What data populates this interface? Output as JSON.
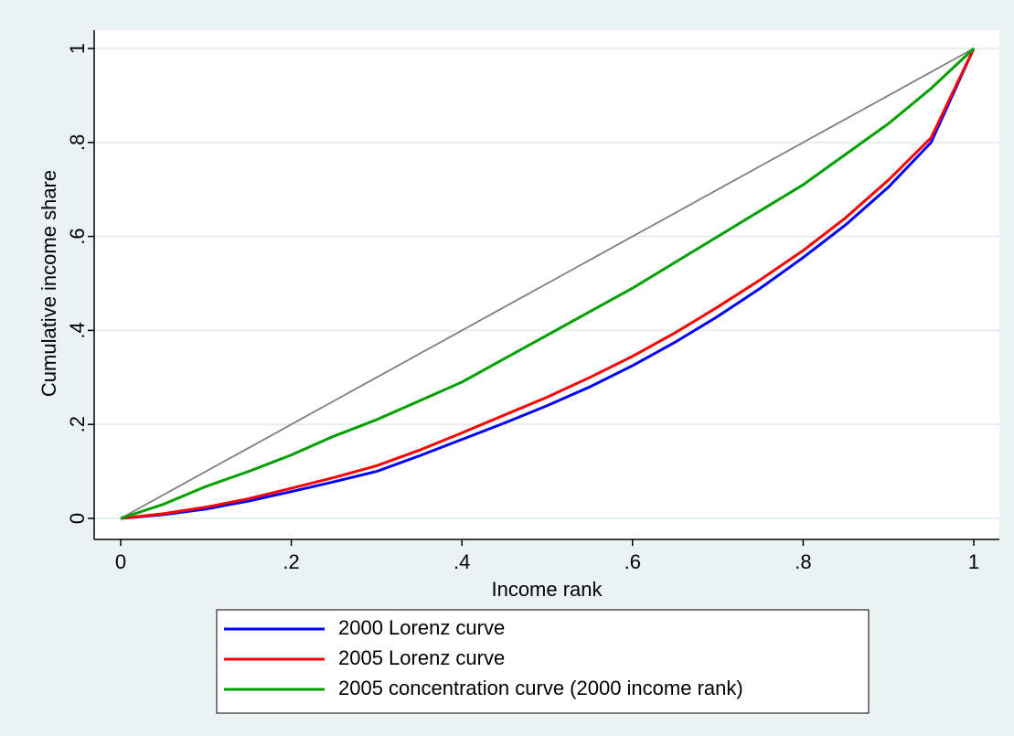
{
  "chart_data": {
    "type": "line",
    "x_label": "Income rank",
    "y_label": "Cumulative income share",
    "x": [
      0,
      0.05,
      0.1,
      0.15,
      0.2,
      0.25,
      0.3,
      0.35,
      0.4,
      0.45,
      0.5,
      0.55,
      0.6,
      0.65,
      0.7,
      0.75,
      0.8,
      0.85,
      0.9,
      0.95,
      1
    ],
    "series": [
      {
        "color": "#808080",
        "values": [
          0,
          0.05,
          0.1,
          0.15,
          0.2,
          0.25,
          0.3,
          0.35,
          0.4,
          0.45,
          0.5,
          0.55,
          0.6,
          0.65,
          0.7,
          0.75,
          0.8,
          0.85,
          0.9,
          0.95,
          1
        ]
      },
      {
        "name": "2000 Lorenz curve",
        "color": "#0000ff",
        "values": [
          0,
          0.008,
          0.02,
          0.037,
          0.057,
          0.078,
          0.1,
          0.133,
          0.168,
          0.203,
          0.24,
          0.28,
          0.325,
          0.375,
          0.43,
          0.49,
          0.555,
          0.625,
          0.705,
          0.8,
          1
        ]
      },
      {
        "name": "2005 Lorenz curve",
        "color": "#ff0000",
        "values": [
          0,
          0.01,
          0.024,
          0.042,
          0.064,
          0.087,
          0.112,
          0.145,
          0.182,
          0.22,
          0.258,
          0.3,
          0.345,
          0.395,
          0.45,
          0.508,
          0.57,
          0.64,
          0.72,
          0.81,
          1
        ]
      },
      {
        "name": "2005 concentration curve (2000 income rank)",
        "color": "#00a000",
        "values": [
          0,
          0.03,
          0.068,
          0.1,
          0.135,
          0.175,
          0.21,
          0.25,
          0.29,
          0.34,
          0.39,
          0.44,
          0.49,
          0.545,
          0.6,
          0.655,
          0.71,
          0.775,
          0.84,
          0.915,
          1
        ]
      }
    ],
    "xlim": [
      0,
      1
    ],
    "ylim": [
      0,
      1
    ],
    "xticks": [
      0,
      {
        "value": 0.2,
        "label": ".2"
      },
      {
        "value": 0.4,
        "label": ".4"
      },
      {
        "value": 0.6,
        "label": ".6"
      },
      {
        "value": 0.8,
        "label": ".8"
      },
      1
    ],
    "yticks": [
      0,
      {
        "value": 0.2,
        "label": ".2"
      },
      {
        "value": 0.4,
        "label": ".4"
      },
      {
        "value": 0.6,
        "label": ".6"
      },
      {
        "value": 0.8,
        "label": ".8"
      },
      1
    ],
    "grid": true
  }
}
